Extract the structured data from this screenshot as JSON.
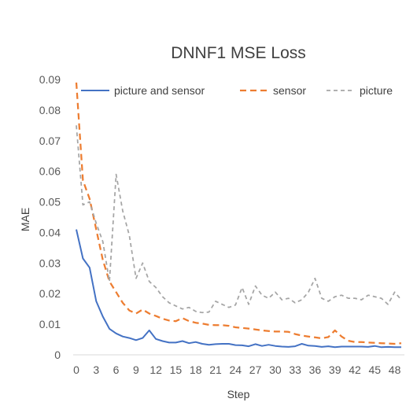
{
  "chart_data": {
    "type": "line",
    "title": "DNNF1 MSE Loss",
    "xlabel": "Step",
    "ylabel": "MAE",
    "ylim": [
      0,
      0.09
    ],
    "xlim": [
      0,
      49
    ],
    "grid": false,
    "legend_position": "top",
    "y_ticks": [
      "0",
      "0.01",
      "0.02",
      "0.03",
      "0.04",
      "0.05",
      "0.06",
      "0.07",
      "0.08",
      "0.09"
    ],
    "x_ticks": [
      "0",
      "3",
      "6",
      "9",
      "12",
      "15",
      "18",
      "21",
      "24",
      "27",
      "30",
      "33",
      "36",
      "39",
      "42",
      "45",
      "48"
    ],
    "x": [
      0,
      1,
      2,
      3,
      4,
      5,
      6,
      7,
      8,
      9,
      10,
      11,
      12,
      13,
      14,
      15,
      16,
      17,
      18,
      19,
      20,
      21,
      22,
      23,
      24,
      25,
      26,
      27,
      28,
      29,
      30,
      31,
      32,
      33,
      34,
      35,
      36,
      37,
      38,
      39,
      40,
      41,
      42,
      43,
      44,
      45,
      46,
      47,
      48,
      49
    ],
    "series": [
      {
        "name": "picture and sensor",
        "color": "#4472C4",
        "dash": "solid",
        "values": [
          0.041,
          0.0315,
          0.0285,
          0.0175,
          0.0125,
          0.0085,
          0.007,
          0.006,
          0.0055,
          0.0048,
          0.0055,
          0.008,
          0.0052,
          0.0045,
          0.004,
          0.004,
          0.0045,
          0.0038,
          0.0042,
          0.0036,
          0.0033,
          0.0035,
          0.0036,
          0.0036,
          0.0032,
          0.0031,
          0.0028,
          0.0035,
          0.0029,
          0.0033,
          0.0029,
          0.0027,
          0.0026,
          0.0028,
          0.0036,
          0.003,
          0.0029,
          0.0026,
          0.0028,
          0.0025,
          0.0027,
          0.0027,
          0.0027,
          0.0027,
          0.0026,
          0.0029,
          0.0025,
          0.0026,
          0.0025,
          0.0025
        ]
      },
      {
        "name": "sensor",
        "color": "#ED7D31",
        "dash": "dashed",
        "values": [
          0.089,
          0.057,
          0.051,
          0.041,
          0.031,
          0.024,
          0.0205,
          0.017,
          0.0145,
          0.0135,
          0.0148,
          0.0135,
          0.0127,
          0.0118,
          0.0112,
          0.011,
          0.012,
          0.011,
          0.0105,
          0.0102,
          0.0098,
          0.0097,
          0.0097,
          0.0095,
          0.009,
          0.0088,
          0.0086,
          0.0083,
          0.008,
          0.0078,
          0.0076,
          0.0076,
          0.0075,
          0.0068,
          0.0063,
          0.006,
          0.0057,
          0.0054,
          0.0058,
          0.008,
          0.006,
          0.0046,
          0.0042,
          0.0042,
          0.004,
          0.0039,
          0.0038,
          0.0037,
          0.0036,
          0.0038
        ]
      },
      {
        "name": "picture",
        "color": "#A5A5A5",
        "dash": "dashed",
        "values": [
          0.075,
          0.049,
          0.05,
          0.043,
          0.037,
          0.024,
          0.059,
          0.047,
          0.039,
          0.025,
          0.03,
          0.024,
          0.022,
          0.019,
          0.017,
          0.016,
          0.015,
          0.0155,
          0.0142,
          0.0138,
          0.014,
          0.0175,
          0.0165,
          0.0155,
          0.0163,
          0.022,
          0.0165,
          0.0225,
          0.0195,
          0.0185,
          0.0205,
          0.018,
          0.0185,
          0.017,
          0.018,
          0.0205,
          0.025,
          0.0185,
          0.0175,
          0.019,
          0.0195,
          0.0185,
          0.0185,
          0.018,
          0.0195,
          0.019,
          0.0185,
          0.0165,
          0.0205,
          0.018
        ]
      }
    ]
  }
}
